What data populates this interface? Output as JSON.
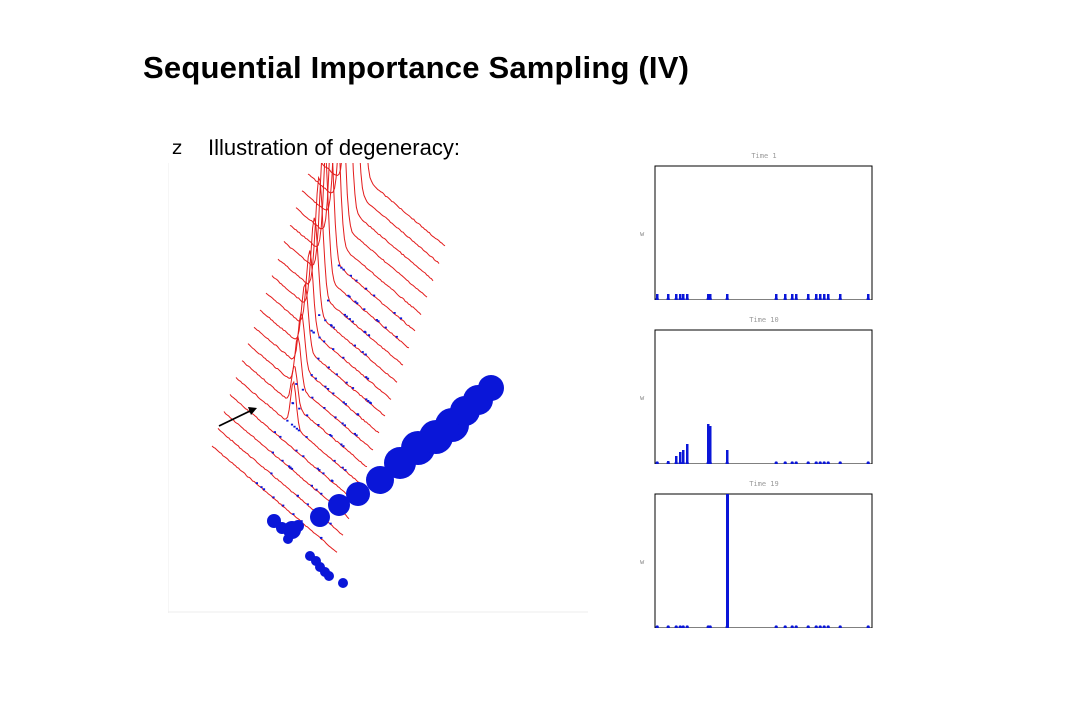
{
  "slide": {
    "title": "Sequential Importance Sampling (IV)",
    "bullet": {
      "glyph": "z",
      "text": "Illustration of degeneracy:"
    }
  },
  "colors": {
    "density_curves": "#e31b1b",
    "particles": "#0a16d8",
    "axes": "#000000",
    "background": "#ffffff"
  },
  "panels": [
    {
      "title": "Time  1",
      "y_label": "w"
    },
    {
      "title": "Time  10",
      "y_label": "w"
    },
    {
      "title": "Time  19",
      "y_label": "w"
    }
  ]
}
